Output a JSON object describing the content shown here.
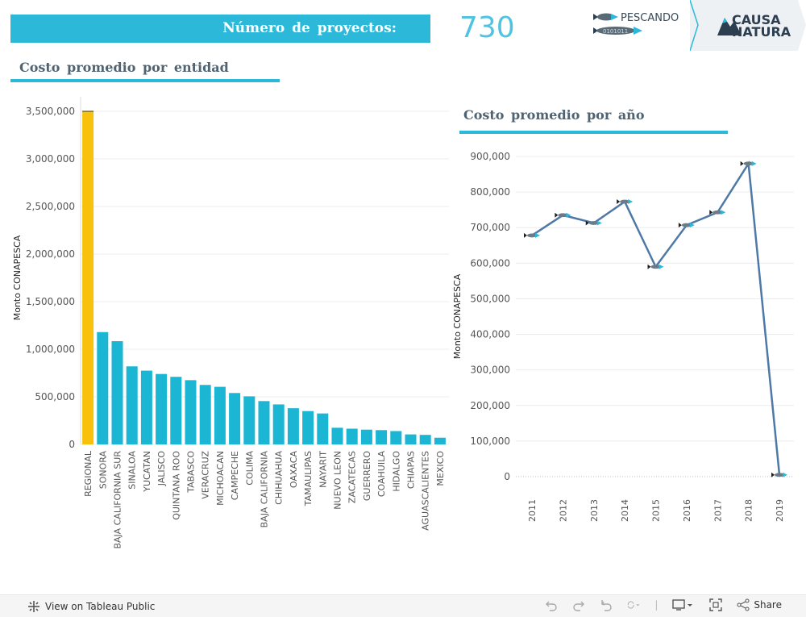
{
  "header": {
    "projects_label": "Número de proyectos:",
    "projects_count": "730",
    "logo_pescando_line1": "PESCANDO",
    "logo_pescando_line2": "DATOS",
    "logo_causa_line1": "CAUSA",
    "logo_causa_line2": "NATURA"
  },
  "footer": {
    "view_label": "View on Tableau Public",
    "share_label": "Share"
  },
  "colors": {
    "accent": "#2cb8d8",
    "highlight": "#f7c10c",
    "bar": "#1ab6d3",
    "line": "#4e79a7",
    "heading": "#4f6372"
  },
  "chart_data": [
    {
      "type": "bar",
      "title": "Costo promedio por entidad",
      "ylabel": "Monto CONAPESCA",
      "xlabel": "",
      "ylim": [
        0,
        3500000
      ],
      "yticks": [
        "0",
        "500,000",
        "1,000,000",
        "1,500,000",
        "2,000,000",
        "2,500,000",
        "3,000,000",
        "3,500,000"
      ],
      "categories": [
        "REGIONAL",
        "SONORA",
        "BAJA CALIFORNIA SUR",
        "SINALOA",
        "YUCATAN",
        "JALISCO",
        "QUINTANA ROO",
        "TABASCO",
        "VERACRUZ",
        "MICHOACAN",
        "CAMPECHE",
        "COLIMA",
        "BAJA CALIFORNIA",
        "CHIHUAHUA",
        "OAXACA",
        "TAMAULIPAS",
        "NAYARIT",
        "NUEVO LEON",
        "ZACATECAS",
        "GUERRERO",
        "COAHUILA",
        "HIDALGO",
        "CHIAPAS",
        "AGUASCALIENTES",
        "MEXICO"
      ],
      "values": [
        3500000,
        1180000,
        1085000,
        820000,
        775000,
        740000,
        710000,
        675000,
        625000,
        605000,
        540000,
        505000,
        455000,
        420000,
        380000,
        350000,
        325000,
        175000,
        165000,
        155000,
        150000,
        140000,
        105000,
        100000,
        70000
      ],
      "highlight_index": 0,
      "grid": true
    },
    {
      "type": "line",
      "title": "Costo promedio por año",
      "ylabel": "Monto CONAPESCA",
      "xlabel": "",
      "ylim": [
        0,
        900000
      ],
      "yticks": [
        "0",
        "100,000",
        "200,000",
        "300,000",
        "400,000",
        "500,000",
        "600,000",
        "700,000",
        "800,000",
        "900,000"
      ],
      "x": [
        "2011",
        "2012",
        "2013",
        "2014",
        "2015",
        "2016",
        "2017",
        "2018",
        "2019"
      ],
      "values": [
        678000,
        735000,
        713000,
        773000,
        590000,
        707000,
        743000,
        880000,
        5000
      ],
      "marker": "fish-icon",
      "grid": true
    }
  ]
}
